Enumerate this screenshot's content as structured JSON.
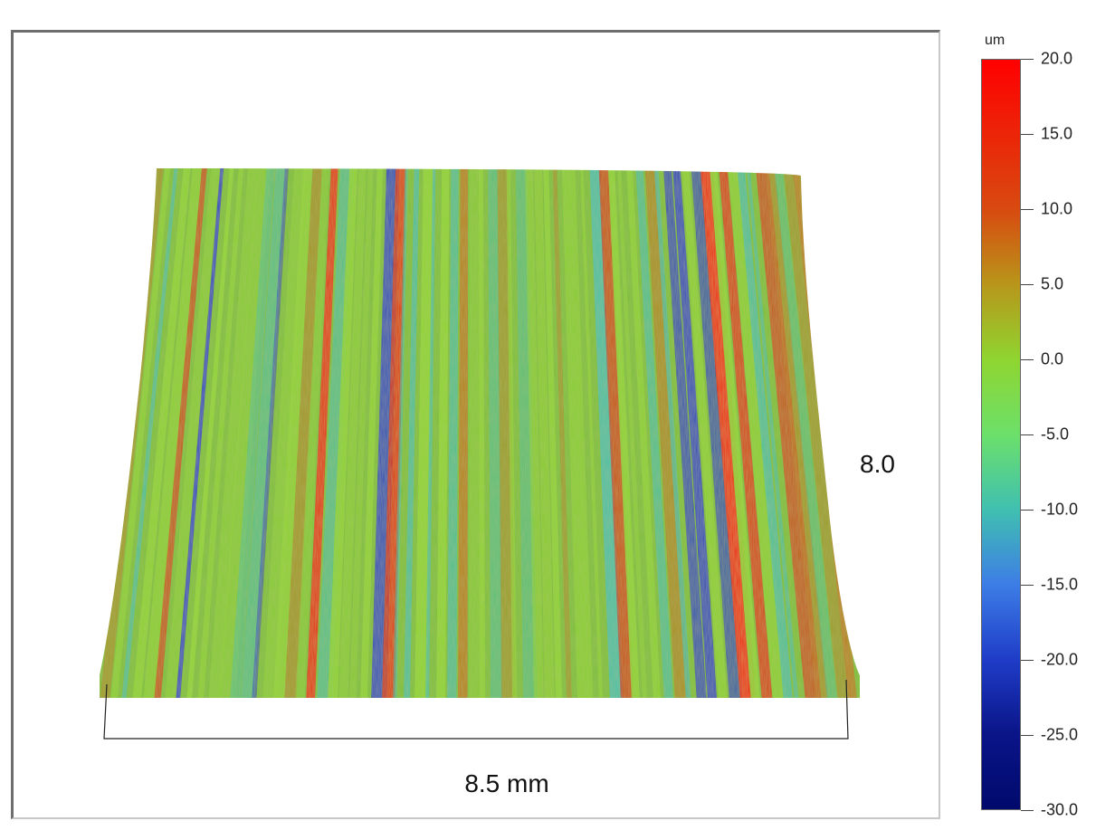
{
  "figure": {
    "x_dimension_label": "8.5 mm",
    "y_dimension_label": "8.0"
  },
  "colorbar": {
    "unit": "um",
    "min": -30.0,
    "max": 20.0,
    "ticks": [
      "20.0",
      "15.0",
      "10.0",
      "5.0",
      "0.0",
      "-5.0",
      "-10.0",
      "-15.0",
      "-20.0",
      "-25.0",
      "-30.0"
    ],
    "colors": {
      "high": "#ff0000",
      "mid_high": "#c07818",
      "zero": "#8fd530",
      "mid_low": "#40c0b0",
      "low": "#1f3dc8",
      "min": "#000a6c"
    }
  }
}
